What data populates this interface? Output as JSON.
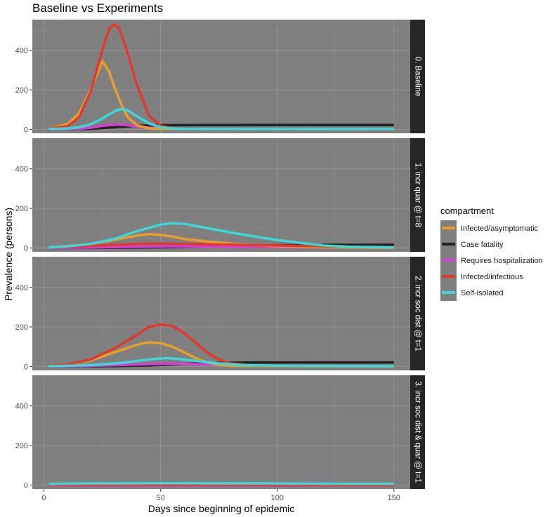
{
  "chart_data": {
    "type": "line",
    "title": "Baseline vs Experiments",
    "xlabel": "Days since beginning of epidemic",
    "ylabel": "Prevalence (persons)",
    "xlim": [
      -5,
      157
    ],
    "ylim": [
      -20,
      555
    ],
    "x_ticks": [
      0,
      50,
      100,
      150
    ],
    "y_ticks": [
      0,
      200,
      400
    ],
    "grid": true,
    "legend": {
      "title": "compartment",
      "placement": "right",
      "entries": [
        "Infected/asymptomatic",
        "Case fatality",
        "Requires hospitalization",
        "Infected/infectious",
        "Self-isolated"
      ]
    },
    "colors": {
      "Infected/asymptomatic": "#e69f2e",
      "Case fatality": "#222222",
      "Requires hospitalization": "#d63ed6",
      "Infected/infectious": "#e03a2f",
      "Self-isolated": "#3fd6d6",
      "panel_background": "#7f7f7f",
      "strip_background": "#262626"
    },
    "panels": [
      {
        "label": "0. Baseline",
        "series": [
          {
            "name": "Infected/asymptomatic",
            "points": [
              [
                2,
                5
              ],
              [
                10,
                25
              ],
              [
                15,
                80
              ],
              [
                20,
                200
              ],
              [
                25,
                345
              ],
              [
                28,
                290
              ],
              [
                30,
                220
              ],
              [
                33,
                130
              ],
              [
                36,
                60
              ],
              [
                40,
                20
              ],
              [
                45,
                5
              ],
              [
                50,
                2
              ],
              [
                100,
                1
              ],
              [
                150,
                1
              ]
            ]
          },
          {
            "name": "Case fatality",
            "points": [
              [
                2,
                0
              ],
              [
                20,
                3
              ],
              [
                30,
                10
              ],
              [
                40,
                18
              ],
              [
                50,
                21
              ],
              [
                100,
                22
              ],
              [
                150,
                22
              ]
            ]
          },
          {
            "name": "Requires hospitalization",
            "points": [
              [
                2,
                0
              ],
              [
                15,
                3
              ],
              [
                20,
                8
              ],
              [
                25,
                18
              ],
              [
                30,
                25
              ],
              [
                35,
                22
              ],
              [
                40,
                15
              ],
              [
                45,
                8
              ],
              [
                50,
                4
              ],
              [
                60,
                1
              ],
              [
                150,
                0
              ]
            ]
          },
          {
            "name": "Infected/infectious",
            "points": [
              [
                2,
                5
              ],
              [
                10,
                15
              ],
              [
                15,
                60
              ],
              [
                20,
                190
              ],
              [
                25,
                400
              ],
              [
                28,
                510
              ],
              [
                30,
                530
              ],
              [
                32,
                515
              ],
              [
                35,
                420
              ],
              [
                40,
                220
              ],
              [
                45,
                70
              ],
              [
                50,
                18
              ],
              [
                55,
                5
              ],
              [
                60,
                2
              ],
              [
                150,
                0
              ]
            ]
          },
          {
            "name": "Self-isolated",
            "points": [
              [
                2,
                2
              ],
              [
                10,
                4
              ],
              [
                15,
                10
              ],
              [
                20,
                25
              ],
              [
                25,
                55
              ],
              [
                30,
                90
              ],
              [
                33,
                103
              ],
              [
                36,
                95
              ],
              [
                40,
                65
              ],
              [
                45,
                30
              ],
              [
                50,
                10
              ],
              [
                55,
                4
              ],
              [
                60,
                2
              ],
              [
                150,
                1
              ]
            ]
          }
        ]
      },
      {
        "label": "1. incr quar @ t=8",
        "series": [
          {
            "name": "Infected/asymptomatic",
            "points": [
              [
                2,
                3
              ],
              [
                10,
                8
              ],
              [
                20,
                20
              ],
              [
                30,
                40
              ],
              [
                40,
                62
              ],
              [
                45,
                70
              ],
              [
                50,
                65
              ],
              [
                55,
                58
              ],
              [
                60,
                45
              ],
              [
                70,
                32
              ],
              [
                80,
                22
              ],
              [
                90,
                14
              ],
              [
                100,
                8
              ],
              [
                120,
                3
              ],
              [
                150,
                1
              ]
            ]
          },
          {
            "name": "Case fatality",
            "points": [
              [
                2,
                0
              ],
              [
                30,
                1
              ],
              [
                50,
                3
              ],
              [
                75,
                8
              ],
              [
                100,
                13
              ],
              [
                125,
                15
              ],
              [
                150,
                16
              ]
            ]
          },
          {
            "name": "Requires hospitalization",
            "points": [
              [
                2,
                0
              ],
              [
                20,
                2
              ],
              [
                40,
                6
              ],
              [
                55,
                8
              ],
              [
                70,
                7
              ],
              [
                90,
                5
              ],
              [
                110,
                3
              ],
              [
                130,
                2
              ],
              [
                150,
                1
              ]
            ]
          },
          {
            "name": "Infected/infectious",
            "points": [
              [
                2,
                2
              ],
              [
                10,
                5
              ],
              [
                20,
                10
              ],
              [
                30,
                15
              ],
              [
                40,
                20
              ],
              [
                50,
                22
              ],
              [
                60,
                20
              ],
              [
                75,
                17
              ],
              [
                90,
                14
              ],
              [
                110,
                10
              ],
              [
                130,
                6
              ],
              [
                150,
                3
              ]
            ]
          },
          {
            "name": "Self-isolated",
            "points": [
              [
                2,
                2
              ],
              [
                10,
                8
              ],
              [
                20,
                20
              ],
              [
                30,
                45
              ],
              [
                40,
                85
              ],
              [
                50,
                118
              ],
              [
                55,
                125
              ],
              [
                60,
                122
              ],
              [
                70,
                100
              ],
              [
                80,
                78
              ],
              [
                90,
                58
              ],
              [
                100,
                40
              ],
              [
                110,
                25
              ],
              [
                120,
                12
              ],
              [
                130,
                6
              ],
              [
                140,
                4
              ],
              [
                150,
                3
              ]
            ]
          }
        ]
      },
      {
        "label": "2. incr soc dist @ t=1",
        "series": [
          {
            "name": "Infected/asymptomatic",
            "points": [
              [
                2,
                3
              ],
              [
                10,
                10
              ],
              [
                20,
                30
              ],
              [
                30,
                70
              ],
              [
                35,
                90
              ],
              [
                40,
                110
              ],
              [
                45,
                122
              ],
              [
                50,
                118
              ],
              [
                55,
                100
              ],
              [
                60,
                72
              ],
              [
                65,
                42
              ],
              [
                70,
                20
              ],
              [
                75,
                8
              ],
              [
                80,
                3
              ],
              [
                100,
                1
              ],
              [
                150,
                0
              ]
            ]
          },
          {
            "name": "Case fatality",
            "points": [
              [
                2,
                0
              ],
              [
                30,
                2
              ],
              [
                45,
                5
              ],
              [
                55,
                10
              ],
              [
                65,
                15
              ],
              [
                75,
                18
              ],
              [
                90,
                20
              ],
              [
                150,
                20
              ]
            ]
          },
          {
            "name": "Requires hospitalization",
            "points": [
              [
                2,
                0
              ],
              [
                20,
                3
              ],
              [
                35,
                8
              ],
              [
                45,
                12
              ],
              [
                55,
                14
              ],
              [
                65,
                12
              ],
              [
                75,
                8
              ],
              [
                85,
                4
              ],
              [
                100,
                2
              ],
              [
                150,
                0
              ]
            ]
          },
          {
            "name": "Infected/infectious",
            "points": [
              [
                2,
                3
              ],
              [
                10,
                10
              ],
              [
                20,
                35
              ],
              [
                30,
                90
              ],
              [
                40,
                160
              ],
              [
                45,
                200
              ],
              [
                50,
                212
              ],
              [
                55,
                205
              ],
              [
                60,
                170
              ],
              [
                65,
                120
              ],
              [
                70,
                70
              ],
              [
                75,
                35
              ],
              [
                80,
                15
              ],
              [
                90,
                5
              ],
              [
                100,
                2
              ],
              [
                150,
                1
              ]
            ]
          },
          {
            "name": "Self-isolated",
            "points": [
              [
                2,
                1
              ],
              [
                15,
                5
              ],
              [
                25,
                10
              ],
              [
                35,
                20
              ],
              [
                45,
                35
              ],
              [
                52,
                42
              ],
              [
                58,
                38
              ],
              [
                65,
                28
              ],
              [
                75,
                15
              ],
              [
                85,
                7
              ],
              [
                100,
                3
              ],
              [
                150,
                1
              ]
            ]
          }
        ]
      },
      {
        "label": "3. incr soc dist & quar @ t=1",
        "series": [
          {
            "name": "Infected/asymptomatic",
            "points": [
              [
                2,
                1
              ],
              [
                50,
                1
              ],
              [
                100,
                1
              ],
              [
                150,
                0
              ]
            ]
          },
          {
            "name": "Case fatality",
            "points": [
              [
                2,
                0
              ],
              [
                75,
                0
              ],
              [
                150,
                0
              ]
            ]
          },
          {
            "name": "Requires hospitalization",
            "points": [
              [
                2,
                -2
              ],
              [
                75,
                -2
              ],
              [
                150,
                -2
              ]
            ]
          },
          {
            "name": "Infected/infectious",
            "points": [
              [
                2,
                1
              ],
              [
                50,
                1
              ],
              [
                100,
                0
              ],
              [
                150,
                0
              ]
            ]
          },
          {
            "name": "Self-isolated",
            "points": [
              [
                2,
                5
              ],
              [
                10,
                7
              ],
              [
                20,
                8
              ],
              [
                30,
                8
              ],
              [
                50,
                9
              ],
              [
                70,
                8
              ],
              [
                90,
                8
              ],
              [
                110,
                7
              ],
              [
                130,
                6
              ],
              [
                150,
                6
              ]
            ]
          }
        ]
      }
    ]
  }
}
